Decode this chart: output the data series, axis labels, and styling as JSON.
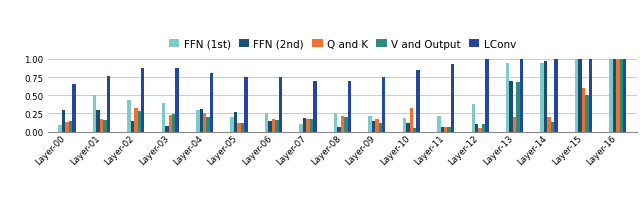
{
  "layers": [
    "Layer-00",
    "Layer-01",
    "Layer-02",
    "Layer-03",
    "Layer-04",
    "Layer-05",
    "Layer-06",
    "Layer-07",
    "Layer-08",
    "Layer-09",
    "Layer-10",
    "Layer-11",
    "Layer-12",
    "Layer-13",
    "Layer-14",
    "Layer-15",
    "Layer-16"
  ],
  "series": {
    "FFN (1st)": [
      0.09,
      0.51,
      0.44,
      0.4,
      0.3,
      0.2,
      0.25,
      0.1,
      0.25,
      0.22,
      0.19,
      0.22,
      0.38,
      0.95,
      0.95,
      1.0,
      1.0
    ],
    "FFN (2nd)": [
      0.3,
      0.3,
      0.14,
      0.08,
      0.31,
      0.27,
      0.15,
      0.19,
      0.07,
      0.15,
      0.12,
      0.07,
      0.1,
      0.69,
      0.97,
      1.0,
      1.0
    ],
    "Q and K": [
      0.13,
      0.18,
      0.32,
      0.23,
      0.25,
      0.12,
      0.18,
      0.18,
      0.21,
      0.17,
      0.33,
      0.06,
      0.05,
      0.2,
      0.2,
      0.6,
      1.0
    ],
    "V and Output": [
      0.14,
      0.16,
      0.28,
      0.24,
      0.2,
      0.12,
      0.16,
      0.17,
      0.2,
      0.12,
      0.05,
      0.07,
      0.1,
      0.68,
      0.13,
      0.5,
      1.0
    ],
    "LConv": [
      0.65,
      0.76,
      0.87,
      0.88,
      0.81,
      0.75,
      0.75,
      0.69,
      0.7,
      0.75,
      0.85,
      0.93,
      1.0,
      1.0,
      1.0,
      1.0,
      1.0
    ]
  },
  "colors": {
    "FFN (1st)": "#7ecaca",
    "FFN (2nd)": "#1b4f72",
    "Q and K": "#f07030",
    "V and Output": "#2e8b7a",
    "LConv": "#2347a0"
  },
  "ylim": [
    0.0,
    1.05
  ],
  "yticks": [
    0.0,
    0.25,
    0.5,
    0.75,
    1.0
  ],
  "ytick_labels": [
    "0.00",
    "0.25",
    "0.50",
    "0.75",
    "1.00"
  ],
  "background_color": "#ffffff",
  "grid_color": "#cccccc",
  "bar_width": 0.1,
  "legend_fontsize": 7.5,
  "tick_fontsize": 6.2
}
